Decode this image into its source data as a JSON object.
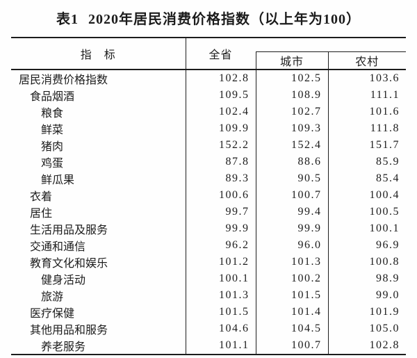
{
  "page": {
    "title_tag": "表1",
    "title_text": "2020年居民消费价格指数（以上年为100）"
  },
  "colors": {
    "text": "#1c1c1c",
    "line": "#1c1c1c",
    "background": "#fefefe"
  },
  "chart_data": {
    "type": "table",
    "title": "表1 2020年居民消费价格指数（以上年为100）",
    "header": {
      "indicator": "指　标",
      "province": "全省",
      "city": "城市",
      "rural": "农村"
    },
    "rows": [
      {
        "indicator": "居民消费价格指数",
        "indent": "0",
        "province": "102.8",
        "city": "102.5",
        "rural": "103.6"
      },
      {
        "indicator": "食品烟酒",
        "indent": "1",
        "province": "109.5",
        "city": "108.9",
        "rural": "111.1"
      },
      {
        "indicator": "粮食",
        "indent": "2",
        "province": "102.4",
        "city": "102.7",
        "rural": "101.6"
      },
      {
        "indicator": "鲜菜",
        "indent": "2",
        "province": "109.9",
        "city": "109.3",
        "rural": "111.8"
      },
      {
        "indicator": "猪肉",
        "indent": "2",
        "province": "152.2",
        "city": "152.4",
        "rural": "151.7"
      },
      {
        "indicator": "鸡蛋",
        "indent": "2",
        "province": "87.8",
        "city": "88.6",
        "rural": "85.9"
      },
      {
        "indicator": "鲜瓜果",
        "indent": "2",
        "province": "89.3",
        "city": "90.5",
        "rural": "85.4"
      },
      {
        "indicator": "衣着",
        "indent": "1",
        "province": "100.6",
        "city": "100.7",
        "rural": "100.4"
      },
      {
        "indicator": "居住",
        "indent": "1",
        "province": "99.7",
        "city": "99.4",
        "rural": "100.5"
      },
      {
        "indicator": "生活用品及服务",
        "indent": "1",
        "province": "99.9",
        "city": "99.9",
        "rural": "100.1"
      },
      {
        "indicator": "交通和通信",
        "indent": "1",
        "province": "96.2",
        "city": "96.0",
        "rural": "96.9"
      },
      {
        "indicator": "教育文化和娱乐",
        "indent": "1",
        "province": "101.2",
        "city": "101.3",
        "rural": "100.8"
      },
      {
        "indicator": "健身活动",
        "indent": "2",
        "province": "100.1",
        "city": "100.2",
        "rural": "98.9"
      },
      {
        "indicator": "旅游",
        "indent": "2",
        "province": "101.3",
        "city": "101.5",
        "rural": "99.0"
      },
      {
        "indicator": "医疗保健",
        "indent": "1",
        "province": "101.5",
        "city": "101.4",
        "rural": "101.9"
      },
      {
        "indicator": "其他用品和服务",
        "indent": "1",
        "province": "104.6",
        "city": "104.5",
        "rural": "105.0"
      },
      {
        "indicator": "养老服务",
        "indent": "2",
        "province": "101.1",
        "city": "100.7",
        "rural": "102.8"
      }
    ]
  }
}
